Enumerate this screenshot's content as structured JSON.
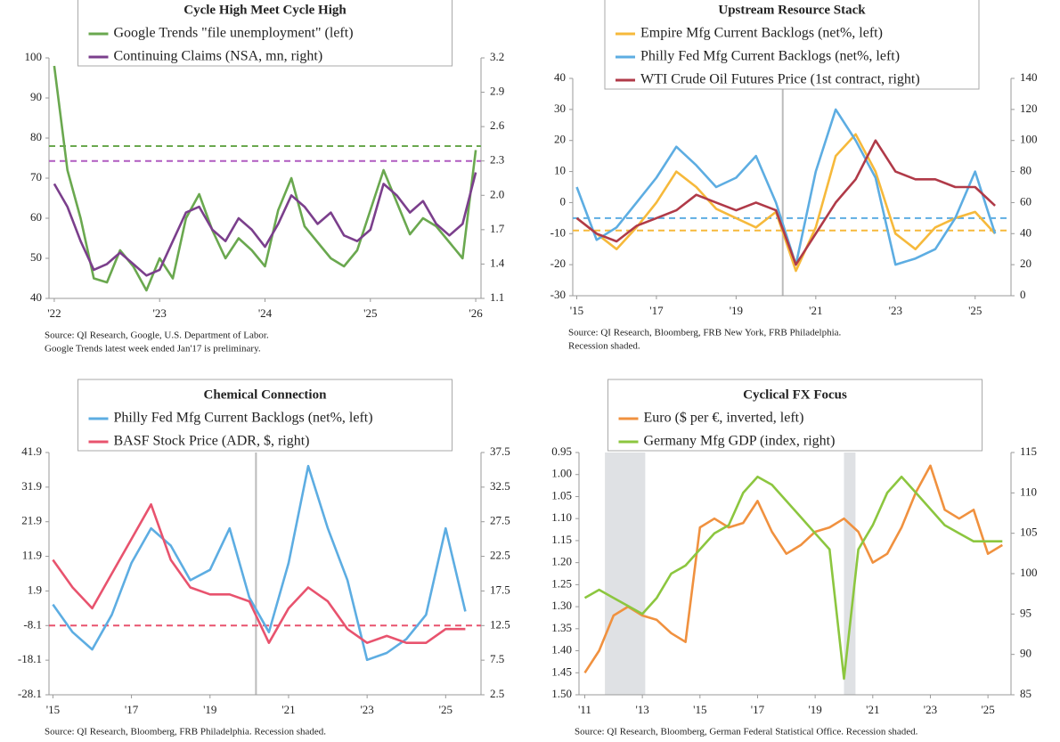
{
  "chart_data": [
    {
      "type": "line",
      "title": "Cycle High Meet Cycle High",
      "notes": [
        "Source: QI Research, Google, U.S. Department of Labor.",
        "Google Trends latest week ended Jan'17 is preliminary."
      ],
      "x": [
        2022,
        2022.125,
        2022.25,
        2022.375,
        2022.5,
        2022.625,
        2022.75,
        2022.875,
        2023,
        2023.125,
        2023.25,
        2023.375,
        2023.5,
        2023.625,
        2023.75,
        2023.875,
        2024,
        2024.125,
        2024.25,
        2024.375,
        2024.5,
        2024.625,
        2024.75,
        2024.875,
        2025,
        2025.125,
        2025.25,
        2025.375,
        2025.5,
        2025.625,
        2025.75,
        2025.875,
        2026
      ],
      "xlim": [
        2021.95,
        2026.05
      ],
      "xticks": [
        {
          "value": 2022,
          "label": "'22"
        },
        {
          "value": 2023,
          "label": "'23"
        },
        {
          "value": 2024,
          "label": "'24"
        },
        {
          "value": 2025,
          "label": "'25"
        },
        {
          "value": 2026,
          "label": "'26"
        }
      ],
      "ylim": [
        40,
        100
      ],
      "yticks": [
        40,
        50,
        60,
        70,
        80,
        90,
        100
      ],
      "y2lim": [
        1.1,
        3.2
      ],
      "y2ticks": [
        1.1,
        1.4,
        1.7,
        {
          "value": 2,
          "label": "2.0"
        },
        2.3,
        2.6,
        2.9,
        3.2
      ],
      "series": [
        {
          "name": "Google Trends \"file unemployment\" (left)",
          "color": "#6aa84f",
          "values": [
            98,
            72,
            60,
            45,
            44,
            52,
            48,
            42,
            50,
            45,
            60,
            66,
            57,
            50,
            55,
            52,
            48,
            62,
            70,
            58,
            54,
            50,
            48,
            52,
            62,
            72,
            64,
            56,
            60,
            58,
            54,
            50,
            77
          ]
        },
        {
          "name": "Continuing Claims (NSA, mn, right)",
          "color": "#7b3f8c",
          "axis": "y2",
          "values": [
            2.1,
            1.9,
            1.6,
            1.35,
            1.4,
            1.5,
            1.4,
            1.3,
            1.35,
            1.6,
            1.85,
            1.9,
            1.7,
            1.6,
            1.8,
            1.7,
            1.55,
            1.75,
            2.0,
            1.9,
            1.75,
            1.85,
            1.65,
            1.6,
            1.7,
            2.1,
            2.0,
            1.85,
            1.95,
            1.75,
            1.65,
            1.75,
            2.2
          ]
        }
      ],
      "hlines": [
        {
          "value": 78,
          "color": "#6aa84f"
        },
        {
          "value": 2.3,
          "axis": "y2",
          "color": "#b05cc0"
        }
      ]
    },
    {
      "type": "line",
      "title": "Upstream Resource Stack",
      "notes": [
        "Source: QI Research, Bloomberg, FRB New York, FRB Philadelphia.",
        "Recession shaded."
      ],
      "x": [
        2015,
        2015.5,
        2016,
        2016.5,
        2017,
        2017.5,
        2018,
        2018.5,
        2019,
        2019.5,
        2020,
        2020.5,
        2021,
        2021.5,
        2022,
        2022.5,
        2023,
        2023.5,
        2024,
        2024.5,
        2025,
        2025.5
      ],
      "xlim": [
        2014.9,
        2025.9
      ],
      "xticks": [
        {
          "value": 2015,
          "label": "'15"
        },
        {
          "value": 2017,
          "label": "'17"
        },
        {
          "value": 2019,
          "label": "'19"
        },
        {
          "value": 2021,
          "label": "'21"
        },
        {
          "value": 2023,
          "label": "'23"
        },
        {
          "value": 2025,
          "label": "'25"
        }
      ],
      "ylim": [
        -30,
        40
      ],
      "yticks": [
        -30,
        -20,
        -10,
        0,
        10,
        20,
        30,
        40
      ],
      "y2lim": [
        0,
        140
      ],
      "y2ticks": [
        0,
        20,
        40,
        60,
        80,
        100,
        120,
        140
      ],
      "series": [
        {
          "name": "Empire Mfg Current Backlogs (net%, left)",
          "color": "#f6b93b",
          "values": [
            -5,
            -10,
            -15,
            -8,
            0,
            10,
            5,
            -2,
            -5,
            -8,
            -3,
            -22,
            -8,
            15,
            22,
            10,
            -10,
            -15,
            -8,
            -5,
            -3,
            -10
          ]
        },
        {
          "name": "Philly Fed Mfg Current Backlogs (net%, left)",
          "color": "#5dade2",
          "values": [
            5,
            -12,
            -8,
            0,
            8,
            18,
            12,
            5,
            8,
            15,
            0,
            -20,
            10,
            30,
            20,
            8,
            -20,
            -18,
            -15,
            -5,
            10,
            -10
          ]
        },
        {
          "name": "WTI Crude Oil Futures Price (1st contract, right)",
          "color": "#b03a48",
          "axis": "y2",
          "values": [
            50,
            40,
            35,
            45,
            50,
            55,
            65,
            60,
            55,
            60,
            55,
            20,
            40,
            60,
            75,
            100,
            80,
            75,
            75,
            70,
            70,
            58
          ]
        }
      ],
      "hlines": [
        {
          "value": -5,
          "color": "#5dade2"
        },
        {
          "value": -9,
          "color": "#f6b93b"
        }
      ],
      "vlines": [
        2020.17
      ]
    },
    {
      "type": "line",
      "title": "Chemical Connection",
      "notes": [
        "Source: QI Research, Bloomberg, FRB Philadelphia. Recession shaded."
      ],
      "x": [
        2015,
        2015.5,
        2016,
        2016.5,
        2017,
        2017.5,
        2018,
        2018.5,
        2019,
        2019.5,
        2020,
        2020.5,
        2021,
        2021.5,
        2022,
        2022.5,
        2023,
        2023.5,
        2024,
        2024.5,
        2025,
        2025.5
      ],
      "xlim": [
        2014.9,
        2025.9
      ],
      "xticks": [
        {
          "value": 2015,
          "label": "'15"
        },
        {
          "value": 2017,
          "label": "'17"
        },
        {
          "value": 2019,
          "label": "'19"
        },
        {
          "value": 2021,
          "label": "'21"
        },
        {
          "value": 2023,
          "label": "'23"
        },
        {
          "value": 2025,
          "label": "'25"
        }
      ],
      "ylim": [
        -28.1,
        41.9
      ],
      "yticks": [
        -28.1,
        -18.1,
        -8.1,
        1.9,
        11.9,
        21.9,
        31.9,
        41.9
      ],
      "y2lim": [
        2.5,
        37.5
      ],
      "y2ticks": [
        2.5,
        7.5,
        12.5,
        17.5,
        22.5,
        27.5,
        32.5,
        37.5
      ],
      "series": [
        {
          "name": "Philly Fed Mfg Current Backlogs (net%, left)",
          "color": "#5dade2",
          "values": [
            -2,
            -10,
            -15,
            -5,
            10,
            20,
            15,
            5,
            8,
            20,
            0,
            -10,
            10,
            38,
            20,
            5,
            -18,
            -16,
            -12,
            -5,
            20,
            -4
          ]
        },
        {
          "name": "BASF Stock Price (ADR, $, right)",
          "color": "#e8536e",
          "axis": "y2",
          "values": [
            22,
            18,
            15,
            20,
            25,
            30,
            22,
            18,
            17,
            17,
            16,
            10,
            15,
            18,
            16,
            12,
            10,
            11,
            10,
            10,
            12,
            12
          ]
        }
      ],
      "hlines": [
        {
          "value": 12.5,
          "axis": "y2",
          "color": "#e8536e"
        }
      ],
      "vlines": [
        2020.17
      ]
    },
    {
      "type": "line",
      "title": "Cyclical FX Focus",
      "notes": [
        "Source: QI Research, Bloomberg, German Federal Statistical Office. Recession shaded."
      ],
      "x": [
        2011,
        2011.5,
        2012,
        2012.5,
        2013,
        2013.5,
        2014,
        2014.5,
        2015,
        2015.5,
        2016,
        2016.5,
        2017,
        2017.5,
        2018,
        2018.5,
        2019,
        2019.5,
        2020,
        2020.5,
        2021,
        2021.5,
        2022,
        2022.5,
        2023,
        2023.5,
        2024,
        2024.5,
        2025,
        2025.5
      ],
      "xlim": [
        2010.8,
        2025.8
      ],
      "xticks": [
        {
          "value": 2011,
          "label": "'11"
        },
        {
          "value": 2013,
          "label": "'13"
        },
        {
          "value": 2015,
          "label": "'15"
        },
        {
          "value": 2017,
          "label": "'17"
        },
        {
          "value": 2019,
          "label": "'19"
        },
        {
          "value": 2021,
          "label": "'21"
        },
        {
          "value": 2023,
          "label": "'23"
        },
        {
          "value": 2025,
          "label": "'25"
        }
      ],
      "ylim": [
        1.5,
        0.95
      ],
      "yticks": [
        0.95,
        {
          "value": 1,
          "label": "1.00"
        },
        1.05,
        {
          "value": 1.1,
          "label": "1.10"
        },
        1.15,
        {
          "value": 1.2,
          "label": "1.20"
        },
        1.25,
        {
          "value": 1.3,
          "label": "1.30"
        },
        1.35,
        {
          "value": 1.4,
          "label": "1.40"
        },
        1.45,
        {
          "value": 1.5,
          "label": "1.50"
        }
      ],
      "y2lim": [
        85,
        115
      ],
      "y2ticks": [
        85,
        90,
        95,
        100,
        105,
        110,
        115
      ],
      "series": [
        {
          "name": "Euro ($ per €, inverted, left)",
          "color": "#f0913f",
          "values": [
            1.45,
            1.4,
            1.32,
            1.3,
            1.32,
            1.33,
            1.36,
            1.38,
            1.12,
            1.1,
            1.12,
            1.11,
            1.06,
            1.13,
            1.18,
            1.16,
            1.13,
            1.12,
            1.1,
            1.13,
            1.2,
            1.18,
            1.12,
            1.04,
            0.98,
            1.08,
            1.1,
            1.08,
            1.18,
            1.16
          ]
        },
        {
          "name": "Germany Mfg GDP (index, right)",
          "color": "#8cc63f",
          "axis": "y2",
          "values": [
            97,
            98,
            97,
            96,
            95,
            97,
            100,
            101,
            103,
            105,
            106,
            110,
            112,
            111,
            109,
            107,
            105,
            103,
            87,
            103,
            106,
            110,
            112,
            110,
            108,
            106,
            105,
            104,
            104,
            104
          ]
        }
      ],
      "vspans": [
        [
          2011.7,
          2013.1
        ],
        [
          2020,
          2020.4
        ]
      ]
    }
  ]
}
